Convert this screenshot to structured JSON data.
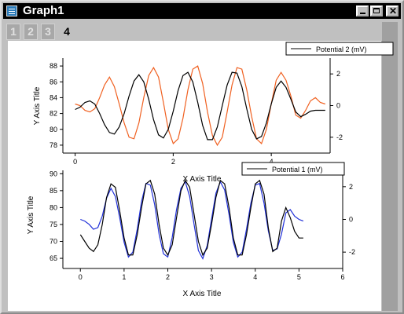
{
  "window": {
    "title": "Graph1"
  },
  "controls": {
    "minimize": "",
    "maximize": "",
    "close": "✕"
  },
  "tabs": [
    "1",
    "2",
    "3",
    "4"
  ],
  "active_tab": "4",
  "chart_data": [
    {
      "type": "line",
      "xlabel": "X Axis Title",
      "ylabel": "Y Axis Title",
      "xlim": [
        -0.25,
        5.2
      ],
      "ylim": [
        77,
        89
      ],
      "y2lim": [
        -3,
        3
      ],
      "x_ticks": [
        "0",
        "2",
        "4"
      ],
      "y_ticks": [
        "78",
        "80",
        "82",
        "84",
        "86",
        "88"
      ],
      "y2_ticks": [
        "-2",
        "0",
        "2"
      ],
      "legend": "Potential 2 (mV)",
      "legend_position": "top-right",
      "series": [
        {
          "name": "Potential 2 (mV)",
          "axis": "right",
          "color": "#f06020",
          "x": [
            0.0,
            0.1,
            0.2,
            0.3,
            0.4,
            0.5,
            0.6,
            0.7,
            0.8,
            0.9,
            1.0,
            1.1,
            1.2,
            1.3,
            1.4,
            1.5,
            1.6,
            1.7,
            1.8,
            1.9,
            2.0,
            2.1,
            2.2,
            2.3,
            2.4,
            2.5,
            2.6,
            2.7,
            2.8,
            2.9,
            3.0,
            3.1,
            3.2,
            3.3,
            3.4,
            3.5,
            3.6,
            3.7,
            3.8,
            3.9,
            4.0,
            4.1,
            4.2,
            4.3,
            4.4,
            4.5,
            4.6,
            4.7,
            4.8,
            4.9,
            5.0,
            5.1
          ],
          "y": [
            0.1,
            0.0,
            -0.3,
            -0.4,
            -0.2,
            0.5,
            1.3,
            1.8,
            1.2,
            0.1,
            -1.1,
            -2.0,
            -2.1,
            -1.1,
            0.5,
            1.9,
            2.4,
            1.8,
            0.2,
            -1.5,
            -2.4,
            -2.1,
            -0.8,
            1.0,
            2.3,
            2.5,
            1.4,
            -0.4,
            -1.9,
            -2.5,
            -2.0,
            -0.4,
            1.3,
            2.4,
            2.3,
            1.0,
            -0.7,
            -2.1,
            -2.4,
            -1.5,
            0.1,
            1.6,
            2.1,
            1.6,
            0.6,
            -0.6,
            -0.8,
            -0.3,
            0.3,
            0.5,
            0.2,
            0.1
          ]
        },
        {
          "name": "",
          "axis": "left",
          "color": "#000000",
          "x": [
            0.0,
            0.1,
            0.2,
            0.3,
            0.4,
            0.5,
            0.6,
            0.7,
            0.8,
            0.9,
            1.0,
            1.1,
            1.2,
            1.3,
            1.4,
            1.5,
            1.6,
            1.7,
            1.8,
            1.9,
            2.0,
            2.1,
            2.2,
            2.3,
            2.4,
            2.5,
            2.6,
            2.7,
            2.8,
            2.9,
            3.0,
            3.1,
            3.2,
            3.3,
            3.4,
            3.5,
            3.6,
            3.7,
            3.8,
            3.9,
            4.0,
            4.1,
            4.2,
            4.3,
            4.4,
            4.5,
            4.6,
            4.7,
            4.8,
            4.9,
            5.0,
            5.1
          ],
          "y": [
            82.5,
            82.8,
            83.4,
            83.6,
            83.2,
            82.0,
            80.6,
            79.6,
            79.4,
            80.3,
            82.0,
            84.2,
            86.1,
            86.9,
            86.0,
            83.8,
            81.2,
            79.3,
            78.9,
            80.0,
            82.3,
            84.9,
            86.8,
            87.2,
            86.0,
            83.4,
            80.5,
            78.7,
            78.7,
            80.3,
            83.0,
            85.6,
            87.2,
            87.1,
            85.4,
            82.6,
            80.0,
            78.8,
            79.1,
            80.8,
            83.2,
            85.3,
            86.1,
            85.3,
            83.8,
            82.2,
            81.6,
            81.9,
            82.3,
            82.4,
            82.4,
            82.4
          ]
        }
      ]
    },
    {
      "type": "line",
      "xlabel": "X Axis Title",
      "ylabel": "Y Axis Title",
      "xlim": [
        -0.4,
        6
      ],
      "ylim": [
        62,
        91
      ],
      "y2lim": [
        -3,
        3
      ],
      "x_ticks": [
        "0",
        "1",
        "2",
        "3",
        "4",
        "5",
        "6"
      ],
      "y_ticks": [
        "65",
        "70",
        "75",
        "80",
        "85",
        "90"
      ],
      "y2_ticks": [
        "-2",
        "0",
        "2"
      ],
      "legend": "Potential 1 (mV)",
      "legend_position": "top-right",
      "series": [
        {
          "name": "Potential 1 (mV)",
          "axis": "right",
          "color": "#1f2fd8",
          "x": [
            0.0,
            0.1,
            0.2,
            0.3,
            0.4,
            0.5,
            0.6,
            0.7,
            0.8,
            0.9,
            1.0,
            1.1,
            1.2,
            1.3,
            1.4,
            1.5,
            1.6,
            1.7,
            1.8,
            1.9,
            2.0,
            2.1,
            2.2,
            2.3,
            2.4,
            2.5,
            2.6,
            2.7,
            2.8,
            2.9,
            3.0,
            3.1,
            3.2,
            3.3,
            3.4,
            3.5,
            3.6,
            3.7,
            3.8,
            3.9,
            4.0,
            4.1,
            4.2,
            4.3,
            4.4,
            4.5,
            4.6,
            4.7,
            4.8,
            4.9,
            5.0,
            5.1
          ],
          "y": [
            0.0,
            -0.1,
            -0.3,
            -0.6,
            -0.5,
            0.2,
            1.3,
            1.9,
            1.4,
            0.1,
            -1.4,
            -2.3,
            -2.0,
            -0.6,
            1.1,
            2.2,
            2.1,
            0.9,
            -0.9,
            -2.1,
            -2.3,
            -1.1,
            0.6,
            1.9,
            2.3,
            1.4,
            -0.3,
            -1.9,
            -2.4,
            -1.6,
            0.0,
            1.6,
            2.3,
            1.8,
            0.3,
            -1.4,
            -2.3,
            -2.0,
            -0.6,
            1.0,
            2.1,
            2.2,
            1.0,
            -0.7,
            -1.9,
            -1.8,
            -0.9,
            0.4,
            0.6,
            0.2,
            0.0,
            -0.1
          ]
        },
        {
          "name": "",
          "axis": "left",
          "color": "#000000",
          "x": [
            0.0,
            0.1,
            0.2,
            0.3,
            0.4,
            0.5,
            0.6,
            0.7,
            0.8,
            0.9,
            1.0,
            1.1,
            1.2,
            1.3,
            1.4,
            1.5,
            1.6,
            1.7,
            1.8,
            1.9,
            2.0,
            2.1,
            2.2,
            2.3,
            2.4,
            2.5,
            2.6,
            2.7,
            2.8,
            2.9,
            3.0,
            3.1,
            3.2,
            3.3,
            3.4,
            3.5,
            3.6,
            3.7,
            3.8,
            3.9,
            4.0,
            4.1,
            4.2,
            4.3,
            4.4,
            4.5,
            4.6,
            4.7,
            4.8,
            4.9,
            5.0,
            5.1
          ],
          "y": [
            72,
            70,
            68,
            67,
            69,
            75,
            83,
            87,
            86,
            79,
            71,
            66,
            66,
            72,
            80,
            87,
            88,
            84,
            75,
            68,
            66,
            69,
            77,
            85,
            88,
            86,
            78,
            70,
            66,
            68,
            75,
            83,
            88,
            87,
            80,
            71,
            66,
            66,
            72,
            80,
            87,
            88,
            84,
            74,
            67,
            68,
            76,
            80,
            77,
            73,
            71,
            71
          ]
        }
      ]
    }
  ],
  "colors": {
    "titlebar": "#000000",
    "window": "#c0c0c0",
    "page": "#ffffff"
  }
}
